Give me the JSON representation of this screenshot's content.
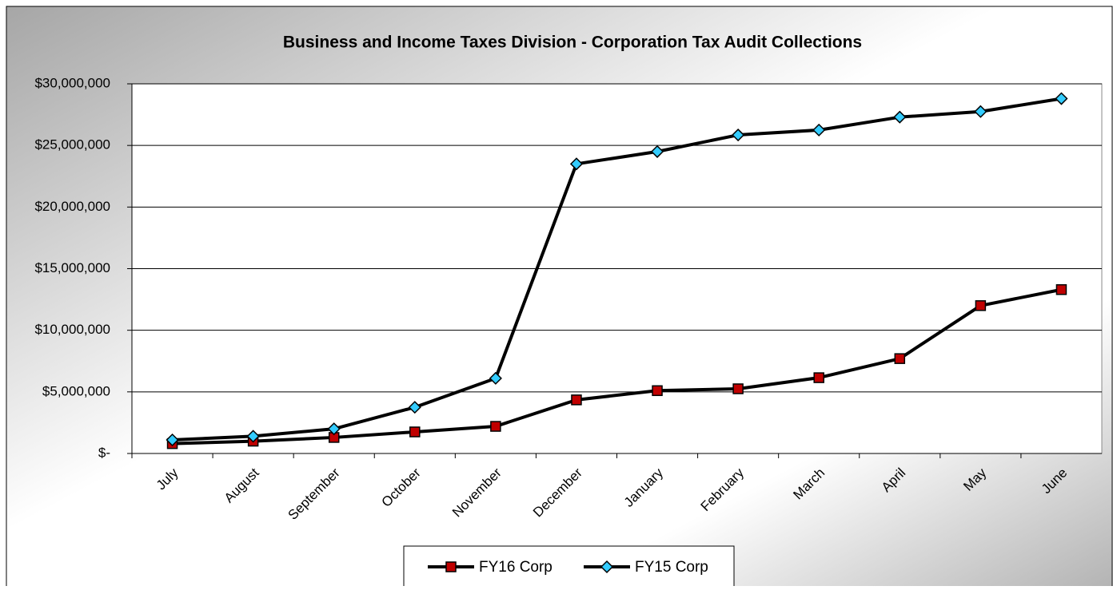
{
  "chart_data": {
    "type": "line",
    "title": "Business and Income Taxes Division - Corporation Tax Audit Collections",
    "categories": [
      "July",
      "August",
      "September",
      "October",
      "November",
      "December",
      "January",
      "February",
      "March",
      "April",
      "May",
      "June"
    ],
    "series": [
      {
        "name": "FY16 Corp",
        "color": "#c00000",
        "marker": "square",
        "values": [
          800000,
          1000000,
          1300000,
          1750000,
          2200000,
          4350000,
          5100000,
          5250000,
          6150000,
          7700000,
          12000000,
          13300000
        ]
      },
      {
        "name": "FY15 Corp",
        "color": "#33ccff",
        "marker": "diamond",
        "values": [
          1100000,
          1400000,
          2000000,
          3750000,
          6100000,
          23500000,
          24500000,
          25850000,
          26250000,
          27300000,
          27750000,
          28800000
        ]
      }
    ],
    "ylim": [
      0,
      30000000
    ],
    "yticks": [
      {
        "value": 0,
        "label": "$-"
      },
      {
        "value": 5000000,
        "label": "$5,000,000"
      },
      {
        "value": 10000000,
        "label": "$10,000,000"
      },
      {
        "value": 15000000,
        "label": "$15,000,000"
      },
      {
        "value": 20000000,
        "label": "$20,000,000"
      },
      {
        "value": 25000000,
        "label": "$25,000,000"
      },
      {
        "value": 30000000,
        "label": "$30,000,000"
      }
    ],
    "grid": true,
    "legend": "bottom"
  }
}
